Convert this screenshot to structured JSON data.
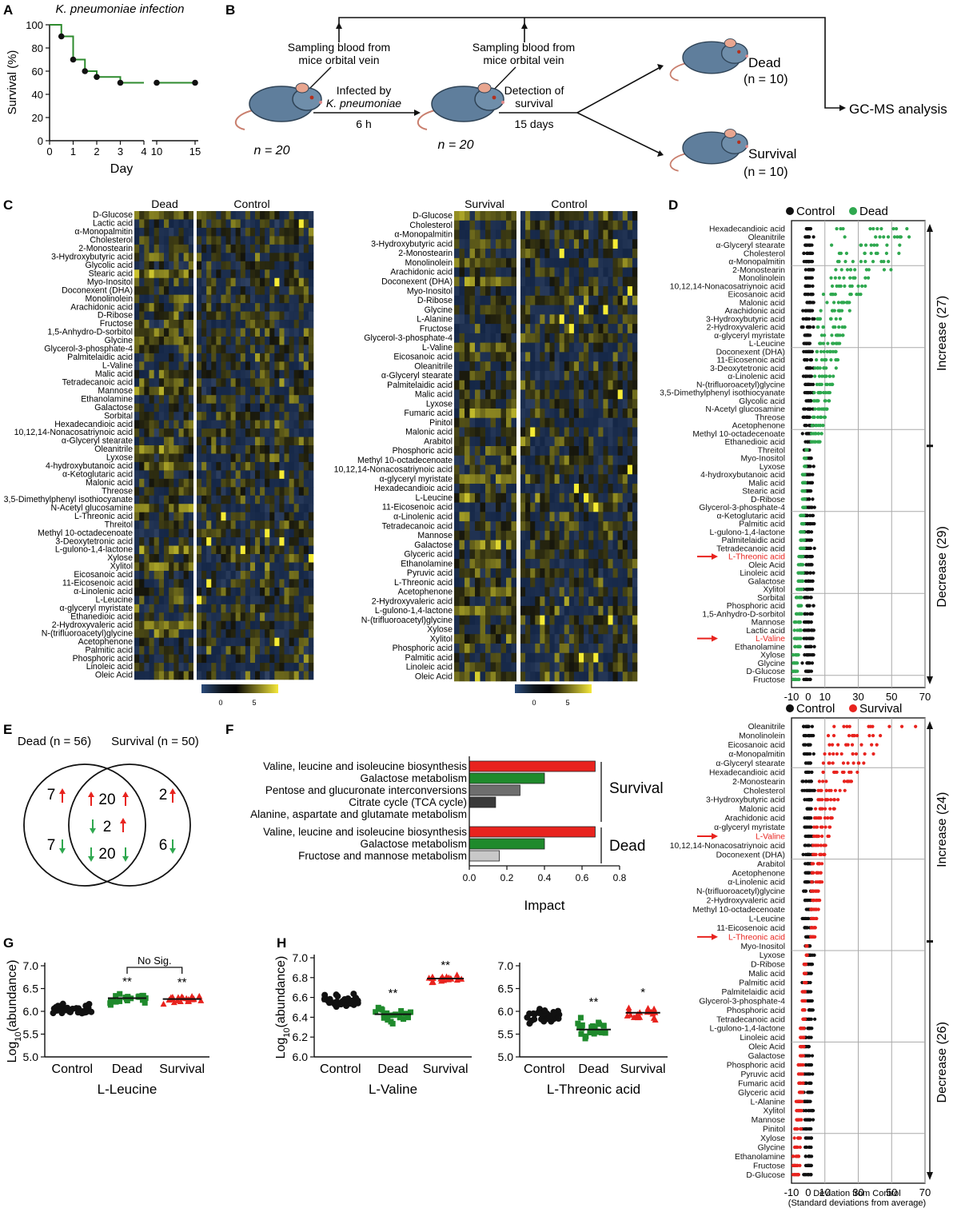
{
  "panels": {
    "A": "A",
    "B": "B",
    "C": "C",
    "D": "D",
    "E": "E",
    "F": "F",
    "G": "G",
    "H": "H"
  },
  "colors": {
    "dead": "#2fa84f",
    "survival": "#e8231e",
    "control": "#111111",
    "curve": "#2e8b2e",
    "heat_hi": "#f5e83a",
    "heat_lo": "#1a2840"
  },
  "panelA": {
    "title": "K. pneumoniae infection",
    "ylabel": "Survival (%)",
    "xlabel": "Day",
    "yticks": [
      "0",
      "20",
      "40",
      "60",
      "80",
      "100"
    ],
    "xticks": [
      "0",
      "1",
      "2",
      "3",
      "4",
      "10",
      "15"
    ]
  },
  "panelB": {
    "sampling1": "Sampling blood from mice orbital vein",
    "sampling2": "Sampling blood from mice orbital vein",
    "infected_by": "Infected by",
    "pathogen": "K. pneumoniae",
    "time1": "6 h",
    "detection": "Detection of survival",
    "time2": "15 days",
    "n1": "n = 20",
    "n2": "n = 20",
    "dead": "Dead",
    "dead_n": "(n = 10)",
    "survival": "Survival",
    "survival_n": "(n = 10)",
    "gcms": "GC-MS analysis"
  },
  "panelC": {
    "left_headers": [
      "Dead",
      "Control"
    ],
    "right_headers": [
      "Survival",
      "Control"
    ],
    "scale_ticks": [
      "0",
      "5"
    ],
    "left_rows": [
      "D-Glucose",
      "Lactic acid",
      "α-Monopalmitin",
      "Cholesterol",
      "2-Monostearin",
      "3-Hydroxybutyric acid",
      "Glycolic acid",
      "Stearic acid",
      "Myo-Inositol",
      "Doconexent (DHA)",
      "Monolinolein",
      "Arachidonic acid",
      "D-Ribose",
      "Fructose",
      "1,5-Anhydro-D-sorbitol",
      "Glycine",
      "Glycerol-3-phosphate-4",
      "Palmitelaidic acid",
      "L-Valine",
      "Malic acid",
      "Tetradecanoic acid",
      "Mannose",
      "Ethanolamine",
      "Galactose",
      "Sorbital",
      "Hexadecandioic acid",
      "10,12,14-Nonacosatriynoic acid",
      "α-Glyceryl stearate",
      "Oleanitrile",
      "Lyxose",
      "4-hydroxybutanoic acid",
      "α-Ketoglutaric acid",
      "Malonic acid",
      "Threose",
      "3,5-Dimethylphenyl isothiocyanate",
      "N-Acetyl glucosamine",
      "L-Threonic acid",
      "Threitol",
      "Methyl 10-octadecenoate",
      "3-Deoxytetronic acid",
      "L-gulono-1,4-lactone",
      "Xylose",
      "Xylitol",
      "Eicosanoic acid",
      "11-Eicosenoic acid",
      "α-Linolenic acid",
      "L-Leucine",
      "α-glyceryl myristate",
      "Ethanedioic acid",
      "2-Hydroxyvaleric acid",
      "N-(trifluoroacetyl)glycine",
      "Acetophenone",
      "Palmitic acid",
      "Phosphoric acid",
      "Linoleic acid",
      "Oleic Acid"
    ],
    "right_rows": [
      "D-Glucose",
      "Cholesterol",
      "α-Monopalmitin",
      "3-Hydroxybutyric acid",
      "2-Monostearin",
      "Monolinolein",
      "Arachidonic acid",
      "Doconexent (DHA)",
      "Myo-Inositol",
      "D-Ribose",
      "Glycine",
      "L-Alanine",
      "Fructose",
      "Glycerol-3-phosphate-4",
      "L-Valine",
      "Eicosanoic acid",
      "Oleanitrile",
      "α-Glyceryl stearate",
      "Palmitelaidic acid",
      "Malic acid",
      "Lyxose",
      "Fumaric acid",
      "Pinitol",
      "Malonic acid",
      "Arabitol",
      "Phosphoric acid",
      "Methyl 10-octadecenoate",
      "10,12,14-Nonacosatriynoic acid",
      "α-glyceryl myristate",
      "Hexadecandioic acid",
      "L-Leucine",
      "11-Eicosenoic acid",
      "α-Linolenic acid",
      "Tetradecanoic acid",
      "Mannose",
      "Galactose",
      "Glyceric acid",
      "Ethanolamine",
      "Pyruvic acid",
      "L-Threonic acid",
      "Acetophenone",
      "2-Hydroxyvaleric acid",
      "L-gulono-1,4-lactone",
      "N-(trifluoroacetyl)glycine",
      "Xylose",
      "Xylitol",
      "Phosphoric acid",
      "Palmitic acid",
      "Linoleic acid",
      "Oleic Acid"
    ]
  },
  "panelD": {
    "legend_control": "Control",
    "legend_dead": "Dead",
    "increase": "Increase (27)",
    "decrease": "Decrease (29)",
    "xticks": [
      "-10",
      "0",
      "10",
      "30",
      "50",
      "70"
    ],
    "rows": [
      "Hexadecandioic acid",
      "Oleanitrile",
      "α-Glyceryl stearate",
      "Cholesterol",
      "α-Monopalmitin",
      "2-Monostearin",
      "Monolinolein",
      "10,12,14-Nonacosatriynoic acid",
      "Eicosanoic acid",
      "Malonic acid",
      "Arachidonic acid",
      "3-Hydroxybutyric acid",
      "2-Hydroxyvaleric acid",
      "α-glyceryl myristate",
      "L-Leucine",
      "Doconexent (DHA)",
      "11-Eicosenoic acid",
      "3-Deoxytetronic acid",
      "α-Linolenic acid",
      "N-(trifluoroacetyl)glycine",
      "3,5-Dimethylphenyl isothiocyanate",
      "Glycolic acid",
      "N-Acetyl glucosamine",
      "Threose",
      "Acetophenone",
      "Methyl 10-octadecenoate",
      "Ethanedioic acid",
      "Threitol",
      "Myo-Inositol",
      "Lyxose",
      "4-hydroxybutanoic acid",
      "Malic acid",
      "Stearic acid",
      "D-Ribose",
      "Glycerol-3-phosphate-4",
      "α-Ketoglutaric acid",
      "Palmitic acid",
      "L-gulono-1,4-lactone",
      "Palmitelaidic acid",
      "Tetradecanoic acid",
      "L-Threonic acid",
      "Oleic Acid",
      "Linoleic acid",
      "Galactose",
      "Xylitol",
      "Sorbital",
      "Phosphoric acid",
      "1,5-Anhydro-D-sorbitol",
      "Mannose",
      "Lactic acid",
      "L-Valine",
      "Ethanolamine",
      "Xylose",
      "Glycine",
      "D-Glucose",
      "Fructose"
    ],
    "deviation": [
      62,
      58,
      56,
      55,
      50,
      48,
      46,
      35,
      30,
      26,
      24,
      22,
      21,
      20,
      19,
      18,
      17,
      16,
      15,
      14,
      13,
      12,
      11,
      10,
      9,
      8,
      7,
      -1,
      -2,
      -2,
      -3,
      -3,
      -3,
      -3,
      -3,
      -4,
      -4,
      -4,
      -4,
      -4,
      -5,
      -5,
      -5,
      -5,
      -6,
      -6,
      -6,
      -6,
      -7,
      -7,
      -7,
      -8,
      -8,
      -8,
      -9,
      -9
    ],
    "highlight": [
      "L-Threonic acid",
      "L-Valine"
    ]
  },
  "panelD2": {
    "legend_control": "Control",
    "legend_survival": "Survival",
    "increase": "Increase (24)",
    "decrease": "Decrease (26)",
    "xticks": [
      "-10",
      "0",
      "10",
      "30",
      "50",
      "70"
    ],
    "xlabel1": "Deviation from Control",
    "xlabel2": "(Standard deviations from average)",
    "rows": [
      "Oleanitrile",
      "Monolinolein",
      "Eicosanoic acid",
      "α-Monopalmitin",
      "α-Glyceryl stearate",
      "Hexadecandioic acid",
      "2-Monostearin",
      "Cholesterol",
      "3-Hydroxybutyric acid",
      "Malonic acid",
      "Arachidonic acid",
      "α-glyceryl myristate",
      "L-Valine",
      "10,12,14-Nonacosatriynoic acid",
      "Doconexent (DHA)",
      "Arabitol",
      "Acetophenone",
      "α-Linolenic acid",
      "N-(trifluoroacetyl)glycine",
      "2-Hydroxyvaleric acid",
      "Methyl 10-octadecenoate",
      "L-Leucine",
      "11-Eicosenoic acid",
      "L-Threonic acid",
      "Myo-Inositol",
      "Lyxose",
      "D-Ribose",
      "Malic acid",
      "Palmitic acid",
      "Palmitelaidic acid",
      "Glycerol-3-phosphate-4",
      "Phosphoric acid",
      "Tetradecanoic acid",
      "L-gulono-1,4-lactone",
      "Linoleic acid",
      "Oleic Acid",
      "Galactose",
      "Phosphoric acid",
      "Pyruvic acid",
      "Fumaric acid",
      "Glyceric acid",
      "L-Alanine",
      "Xylitol",
      "Mannose",
      "Pinitol",
      "Xylose",
      "Glycine",
      "Ethanolamine",
      "Fructose",
      "D-Glucose"
    ],
    "deviation": [
      62,
      45,
      40,
      38,
      33,
      30,
      25,
      22,
      18,
      16,
      15,
      13,
      12,
      11,
      10,
      9,
      8,
      8,
      7,
      7,
      6,
      6,
      5,
      4,
      -1,
      -1,
      -2,
      -2,
      -2,
      -3,
      -3,
      -3,
      -3,
      -4,
      -4,
      -4,
      -4,
      -5,
      -5,
      -5,
      -5,
      -6,
      -6,
      -6,
      -7,
      -7,
      -7,
      -8,
      -8,
      -9
    ],
    "highlight": [
      "L-Valine",
      "L-Threonic acid"
    ]
  },
  "panelE": {
    "dead_label": "Dead (n = 56)",
    "survival_label": "Survival (n = 50)",
    "left_up": "7",
    "left_down": "7",
    "mid_up": "20",
    "mid_mix": "2",
    "mid_down": "20",
    "right_up": "2",
    "right_down": "6"
  },
  "panelF": {
    "xlabel": "Impact",
    "xticks": [
      "0.0",
      "0.2",
      "0.4",
      "0.6",
      "0.8"
    ],
    "group_survival": "Survival",
    "group_dead": "Dead",
    "survival_bars": [
      {
        "name": "Valine, leucine and isoleucine biosynthesis",
        "value": 0.67,
        "color": "#e8231e"
      },
      {
        "name": "Galactose metabolism",
        "value": 0.4,
        "color": "#1f8a2c"
      },
      {
        "name": "Pentose and glucuronate interconversions",
        "value": 0.27,
        "color": "#6e6e6e"
      },
      {
        "name": "Citrate cycle (TCA cycle)",
        "value": 0.14,
        "color": "#3a3a3a"
      },
      {
        "name": "Alanine, aspartate and glutamate metabolism",
        "value": 0.0,
        "color": "#bbbbbb"
      }
    ],
    "dead_bars": [
      {
        "name": "Valine, leucine and isoleucine biosynthesis",
        "value": 0.67,
        "color": "#e8231e"
      },
      {
        "name": "Galactose metabolism",
        "value": 0.4,
        "color": "#1f8a2c"
      },
      {
        "name": "Fructose and mannose metabolism",
        "value": 0.16,
        "color": "#c8c8c8"
      }
    ]
  },
  "panelG": {
    "ylabel": "Log10(abundance)",
    "ylabel_main": "Log",
    "ylabel_sub": "10",
    "ylabel_rest": "(abundance)",
    "xlabel": "L-Leucine",
    "groups": [
      "Control",
      "Dead",
      "Survival"
    ],
    "yticks": [
      "5.0",
      "5.5",
      "6.0",
      "6.5",
      "7.0"
    ],
    "sig": [
      "",
      "**",
      "**"
    ],
    "nosig": "No Sig.",
    "means": [
      6.05,
      6.29,
      6.27
    ]
  },
  "panelH1": {
    "xlabel": "L-Valine",
    "groups": [
      "Control",
      "Dead",
      "Survival"
    ],
    "yticks": [
      "6.0",
      "6.2",
      "6.4",
      "6.6",
      "6.8",
      "7.0"
    ],
    "sig": [
      "",
      "**",
      "**"
    ],
    "means": [
      6.56,
      6.43,
      6.79
    ]
  },
  "panelH2": {
    "xlabel": "L-Threonic acid",
    "groups": [
      "Control",
      "Dead",
      "Survival"
    ],
    "yticks": [
      "5.0",
      "5.5",
      "6.0",
      "6.5",
      "7.0"
    ],
    "sig": [
      "",
      "**",
      "*"
    ],
    "means": [
      5.92,
      5.6,
      5.97
    ]
  },
  "chart_data": [
    {
      "type": "line",
      "panel": "A",
      "title": "K. pneumoniae infection",
      "xlabel": "Day",
      "ylabel": "Survival (%)",
      "ylim": [
        0,
        100
      ],
      "x": [
        0,
        0.5,
        1,
        1.5,
        2,
        3,
        10,
        15
      ],
      "y": [
        100,
        90,
        70,
        60,
        55,
        50,
        50,
        50
      ]
    },
    {
      "type": "bar",
      "panel": "F",
      "xlabel": "Impact",
      "xlim": [
        0,
        0.8
      ],
      "categories": [
        "Valine, leucine and isoleucine biosynthesis",
        "Galactose metabolism",
        "Pentose and glucuronate interconversions",
        "Citrate cycle (TCA cycle)",
        "Alanine, aspartate and glutamate metabolism",
        "Valine, leucine and isoleucine biosynthesis",
        "Galactose metabolism",
        "Fructose and mannose metabolism"
      ],
      "values": [
        0.67,
        0.4,
        0.27,
        0.14,
        0.0,
        0.67,
        0.4,
        0.16
      ]
    },
    {
      "type": "scatter",
      "panel": "G",
      "xlabel": "L-Leucine",
      "categories": [
        "Control",
        "Dead",
        "Survival"
      ],
      "values": [
        6.05,
        6.29,
        6.27
      ],
      "ylim": [
        5.0,
        7.0
      ]
    },
    {
      "type": "scatter",
      "panel": "H",
      "xlabel": "L-Valine",
      "categories": [
        "Control",
        "Dead",
        "Survival"
      ],
      "values": [
        6.56,
        6.43,
        6.79
      ],
      "ylim": [
        6.0,
        7.0
      ]
    },
    {
      "type": "scatter",
      "panel": "H",
      "xlabel": "L-Threonic acid",
      "categories": [
        "Control",
        "Dead",
        "Survival"
      ],
      "values": [
        5.92,
        5.6,
        5.97
      ],
      "ylim": [
        5.0,
        7.0
      ]
    }
  ]
}
